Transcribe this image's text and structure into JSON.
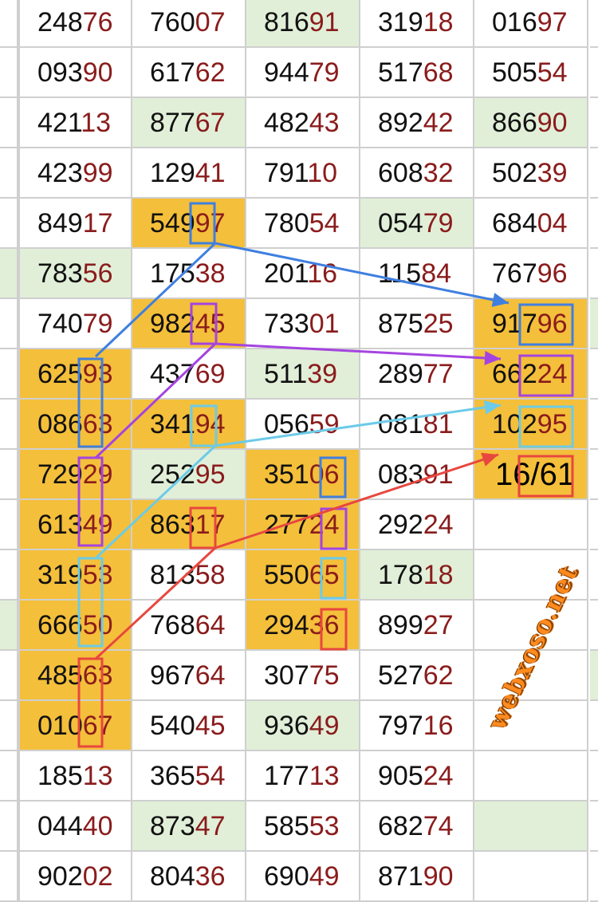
{
  "watermark": "webxoso.net",
  "colors": {
    "orange_highlight": "#f4bf3a",
    "green_highlight": "#e1efd8",
    "tail_digits": "#8a1c1c"
  },
  "rows": [
    [
      "24876",
      "76007",
      "81691",
      "31918",
      "01697"
    ],
    [
      "09390",
      "61762",
      "94479",
      "51768",
      "50554"
    ],
    [
      "42113",
      "87767",
      "48243",
      "89242",
      "86690"
    ],
    [
      "42399",
      "12941",
      "79110",
      "60832",
      "50239"
    ],
    [
      "84917",
      "54997",
      "78054",
      "05479",
      "68404"
    ],
    [
      "78356",
      "17538",
      "20116",
      "11584",
      "76796"
    ],
    [
      "74079",
      "98245",
      "73301",
      "87525",
      "91796"
    ],
    [
      "62593",
      "43769",
      "51139",
      "28977",
      "66224"
    ],
    [
      "08663",
      "34194",
      "05659",
      "08181",
      "10295"
    ],
    [
      "72929",
      "25295",
      "35106",
      "08391",
      "16/61"
    ],
    [
      "61349",
      "86317",
      "27724",
      "29224",
      ""
    ],
    [
      "31953",
      "81358",
      "55065",
      "17818",
      ""
    ],
    [
      "66650",
      "76864",
      "29436",
      "89927",
      ""
    ],
    [
      "48563",
      "96764",
      "30775",
      "52762",
      ""
    ],
    [
      "01067",
      "54045",
      "93649",
      "79716",
      ""
    ],
    [
      "18513",
      "36554",
      "17713",
      "90524",
      ""
    ],
    [
      "04440",
      "87347",
      "58553",
      "68274",
      ""
    ],
    [
      "90202",
      "80436",
      "69049",
      "87190",
      ""
    ]
  ],
  "highlights": [
    [
      "",
      "",
      "g",
      "",
      ""
    ],
    [
      "",
      "",
      "",
      "",
      ""
    ],
    [
      "",
      "g",
      "",
      "",
      "g"
    ],
    [
      "",
      "",
      "",
      "",
      ""
    ],
    [
      "",
      "o",
      "",
      "g",
      ""
    ],
    [
      "g",
      "",
      "",
      "",
      ""
    ],
    [
      "",
      "o",
      "",
      "",
      "o"
    ],
    [
      "o",
      "",
      "g",
      "",
      "o"
    ],
    [
      "o",
      "o",
      "",
      "",
      "o"
    ],
    [
      "o",
      "g",
      "o",
      "",
      "o"
    ],
    [
      "o",
      "o",
      "o",
      "",
      ""
    ],
    [
      "o",
      "",
      "o",
      "g",
      ""
    ],
    [
      "o",
      "",
      "o",
      "",
      ""
    ],
    [
      "o",
      "",
      "",
      "",
      ""
    ],
    [
      "o",
      "",
      "g",
      "",
      ""
    ],
    [
      "",
      "",
      "",
      "",
      ""
    ],
    [
      "",
      "g",
      "",
      "",
      "g"
    ],
    [
      "",
      "",
      "",
      "",
      ""
    ]
  ],
  "annotation_colors": {
    "blue": "#3f7fe0",
    "purple": "#a444e0",
    "light_blue": "#6ccbe8",
    "red": "#e8473f"
  }
}
